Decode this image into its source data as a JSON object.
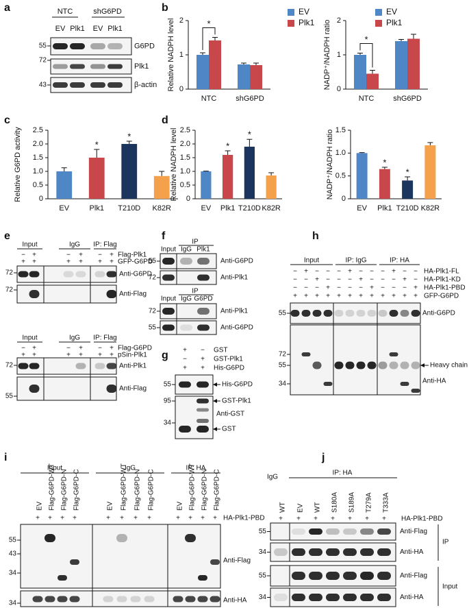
{
  "chart_data": [
    {
      "type": "bar",
      "y_label": "Relative NADPH level",
      "categories": [
        "NTC",
        "shG6PD"
      ],
      "series": [
        {
          "name": "EV",
          "color": "#4f86c6",
          "values": [
            1.0,
            0.72
          ],
          "errors": [
            0.06,
            0.04
          ]
        },
        {
          "name": "Plk1",
          "color": "#c8474a",
          "values": [
            1.42,
            0.7
          ],
          "errors": [
            0.09,
            0.06
          ]
        }
      ],
      "ylim": [
        0,
        2
      ],
      "yticks": [
        0,
        1,
        2
      ],
      "annotations": [
        "*"
      ]
    },
    {
      "type": "bar",
      "y_label": "NADP⁺/NADPH ratio",
      "categories": [
        "NTC",
        "shG6PD"
      ],
      "series": [
        {
          "name": "EV",
          "color": "#4f86c6",
          "values": [
            1.0,
            1.4
          ],
          "errors": [
            0.05,
            0.05
          ]
        },
        {
          "name": "Plk1",
          "color": "#c8474a",
          "values": [
            0.45,
            1.47
          ],
          "errors": [
            0.1,
            0.13
          ]
        }
      ],
      "ylim": [
        0,
        2
      ],
      "yticks": [
        0,
        1,
        2
      ],
      "annotations": [
        "*"
      ]
    },
    {
      "type": "bar",
      "y_label": "Relative G6PD activity",
      "categories": [
        "EV",
        "Plk1",
        "T210D",
        "K82R"
      ],
      "values": [
        1.0,
        1.5,
        2.0,
        0.83
      ],
      "errors": [
        0.13,
        0.3,
        0.1,
        0.17
      ],
      "colors": [
        "#4f86c6",
        "#c8474a",
        "#1c355e",
        "#f5a04b"
      ],
      "ylim": [
        0,
        2.5
      ],
      "yticks": [
        0,
        0.5,
        {
          "value": 1,
          "label": "1.0"
        },
        1.5,
        {
          "value": 2,
          "label": "2.0"
        },
        2.5
      ],
      "annotations": [
        "*",
        "*"
      ]
    },
    {
      "type": "bar",
      "y_label": "Relative NADPH level",
      "categories": [
        "EV",
        "Plk1",
        "T210D",
        "K82R"
      ],
      "values": [
        1.0,
        1.6,
        1.9,
        0.85
      ],
      "errors": [
        0.01,
        0.15,
        0.27,
        0.1
      ],
      "colors": [
        "#4f86c6",
        "#c8474a",
        "#1c355e",
        "#f5a04b"
      ],
      "ylim": [
        0,
        2.5
      ],
      "yticks": [
        0,
        0.5,
        {
          "value": 1,
          "label": "1.0"
        },
        1.5,
        {
          "value": 2,
          "label": "2.0"
        },
        2.5
      ],
      "annotations": [
        "*",
        "*"
      ]
    },
    {
      "type": "bar",
      "y_label": "NADP⁺/NADPH ratio",
      "categories": [
        "EV",
        "Plk1",
        "T210D",
        "K82R"
      ],
      "values": [
        1.0,
        0.65,
        0.4,
        1.17
      ],
      "errors": [
        0.01,
        0.04,
        0.08,
        0.06
      ],
      "colors": [
        "#4f86c6",
        "#c8474a",
        "#1c355e",
        "#f5a04b"
      ],
      "ylim": [
        0,
        1.5
      ],
      "yticks": [
        0,
        0.5,
        {
          "value": 1,
          "label": "1.0"
        },
        1.5
      ],
      "annotations": [
        "*",
        "*"
      ]
    }
  ],
  "figure": {
    "a": {
      "letter": "a",
      "groups": [
        "NTC",
        "shG6PD"
      ],
      "lanes": [
        "EV",
        "Plk1",
        "EV",
        "Plk1"
      ],
      "blots": [
        "G6PD",
        "Plk1",
        "β-actin"
      ],
      "markers": [
        55,
        72,
        43
      ]
    },
    "b": {
      "letter": "b"
    },
    "c": {
      "letter": "c"
    },
    "d": {
      "letter": "d"
    },
    "e": {
      "letter": "e",
      "top": {
        "headers": [
          "Input",
          "IgG",
          "IP: Flag"
        ],
        "conditions": [
          {
            "label": "Flag-Plk1",
            "signs": [
              "−",
              "+",
              "−",
              "+",
              "−",
              "+"
            ]
          },
          {
            "label": "GFP-G6PD",
            "signs": [
              "+",
              "+",
              "+",
              "+",
              "+",
              "+"
            ]
          }
        ],
        "blots": [
          "Anti-G6PD",
          "Anti-Flag"
        ],
        "markers": [
          72,
          72
        ]
      },
      "bottom": {
        "headers": [
          "Input",
          "IgG",
          "IP: Flag"
        ],
        "conditions": [
          {
            "label": "Flag-G6PD",
            "signs": [
              "−",
              "+",
              "−",
              "+",
              "−",
              "+"
            ]
          },
          {
            "label": "pSin-Plk1",
            "signs": [
              "+",
              "+",
              "+",
              "+",
              "+",
              "+"
            ]
          }
        ],
        "blots": [
          "Anti-Plk1",
          "Anti-Flag"
        ],
        "markers": [
          72,
          55
        ]
      }
    },
    "f": {
      "letter": "f",
      "top": {
        "ip": "IP",
        "lanes": [
          "Input",
          "IgG",
          "Plk1"
        ],
        "blots": [
          "Anti-G6PD",
          "Anti-Plk1"
        ],
        "markers": [
          55,
          72
        ]
      },
      "bottom": {
        "ip": "IP",
        "lanes": [
          "Input",
          "IgG",
          "G6PD"
        ],
        "blots": [
          "Anti-Plk1",
          "Anti-G6PD"
        ],
        "markers": [
          72,
          55
        ]
      }
    },
    "g": {
      "letter": "g",
      "conditions": [
        {
          "label": "GST",
          "signs": [
            "+",
            "−"
          ]
        },
        {
          "label": "GST-Plk1",
          "signs": [
            "−",
            "+"
          ]
        },
        {
          "label": "His-G6PD",
          "signs": [
            "+",
            "+"
          ]
        }
      ],
      "bands": [
        "His-G6PD",
        "GST-Plk1",
        "GST"
      ],
      "antibody": "Anti-GST",
      "markers": [
        55,
        95,
        34
      ]
    },
    "h": {
      "letter": "h",
      "headers": [
        "Input",
        "IP: IgG",
        "IP: HA"
      ],
      "conditions": [
        {
          "label": "HA-Plk1-FL",
          "signs": [
            "−",
            "+",
            "−",
            "−",
            "−",
            "+",
            "−",
            "−",
            "−",
            "+",
            "−",
            "−"
          ]
        },
        {
          "label": "HA-Plk1-KD",
          "signs": [
            "−",
            "−",
            "+",
            "−",
            "−",
            "−",
            "+",
            "−",
            "−",
            "−",
            "+",
            "−"
          ]
        },
        {
          "label": "HA-Plk1-PBD",
          "signs": [
            "−",
            "−",
            "−",
            "+",
            "−",
            "−",
            "−",
            "+",
            "−",
            "−",
            "−",
            "+"
          ]
        },
        {
          "label": "GFP-G6PD",
          "signs": [
            "+",
            "+",
            "+",
            "+",
            "+",
            "+",
            "+",
            "+",
            "+",
            "+",
            "+",
            "+"
          ]
        }
      ],
      "blots": [
        "Anti-G6PD",
        "Anti-HA"
      ],
      "heavy_chain": "Heavy chain",
      "markers": [
        55,
        72,
        55,
        34
      ]
    },
    "i": {
      "letter": "i",
      "headers": [
        "Input",
        "IgG",
        "IP: HA"
      ],
      "lanes": [
        "EV",
        "Flag-G6PD-WT",
        "Flag-G6PD-N",
        "Flag-G6PD-C",
        "EV",
        "Flag-G6PD-WT",
        "Flag-G6PD-N",
        "Flag-G6PD-C",
        "EV",
        "Flag-G6PD-WT",
        "Flag-G6PD-N",
        "Flag-G6PD-C"
      ],
      "condition": {
        "label": "HA-Plk1-PBD",
        "signs": [
          "+",
          "+",
          "+",
          "+",
          "+",
          "+",
          "+",
          "+",
          "+",
          "+",
          "+",
          "+"
        ]
      },
      "blots": [
        "Anti-Flag",
        "Anti-HA"
      ],
      "markers": [
        55,
        43,
        34,
        34
      ]
    },
    "j": {
      "letter": "j",
      "igg": "IgG",
      "ip_header": "IP: HA",
      "lanes": [
        "WT",
        "EV",
        "WT",
        "S180A",
        "S189A",
        "T279A",
        "T333A"
      ],
      "condition": {
        "label": "HA-Plk1-PBD",
        "signs": [
          "+",
          "+",
          "+",
          "+",
          "+",
          "+",
          "+"
        ]
      },
      "blots": [
        "Anti-Flag",
        "Anti-HA",
        "Anti-Flag",
        "Anti-HA"
      ],
      "groups": [
        "IP",
        "Input"
      ],
      "markers": [
        55,
        34,
        55,
        34
      ]
    }
  }
}
